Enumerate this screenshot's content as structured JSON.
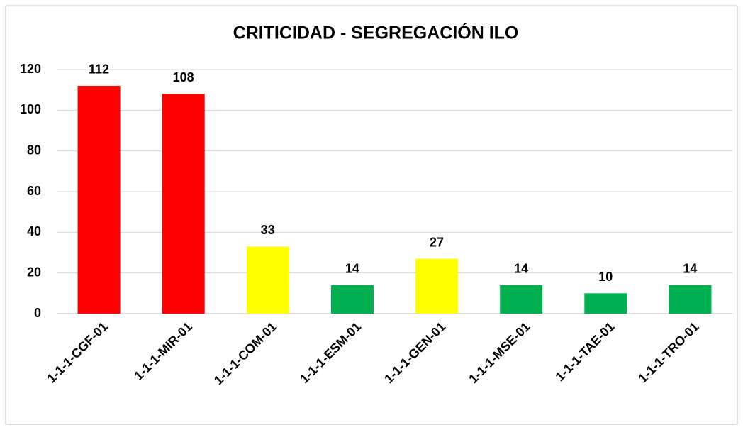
{
  "chart_data": {
    "type": "bar",
    "title": "CRITICIDAD - SEGREGACIÓN ILO",
    "categories": [
      "1-1-1-CGF-01",
      "1-1-1-MIR-01",
      "1-1-1-COM-01",
      "1-1-1-ESM-01",
      "1-1-1-GEN-01",
      "1-1-1-MSE-01",
      "1-1-1-TAE-01",
      "1-1-1-TRO-01"
    ],
    "values": [
      112,
      108,
      33,
      14,
      27,
      14,
      10,
      14
    ],
    "colors": [
      "#ff0000",
      "#ff0000",
      "#ffff00",
      "#00b050",
      "#ffff00",
      "#00b050",
      "#00b050",
      "#00b050"
    ],
    "ylim": [
      0,
      120
    ],
    "yticks": [
      0,
      20,
      40,
      60,
      80,
      100,
      120
    ],
    "grid": true
  }
}
